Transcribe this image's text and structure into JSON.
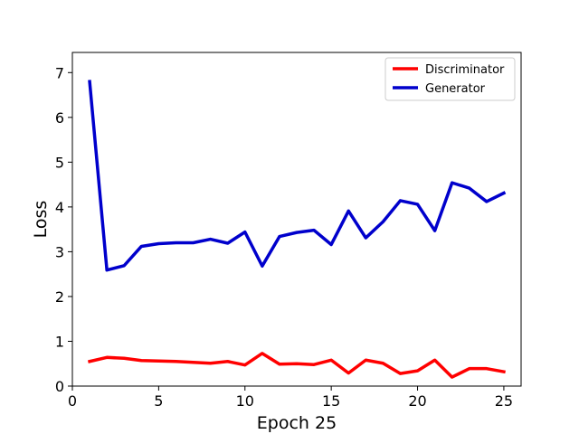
{
  "chart_data": {
    "type": "line",
    "title": "",
    "xlabel": "Epoch 25",
    "ylabel": "Loss",
    "x": [
      1,
      2,
      3,
      4,
      5,
      6,
      7,
      8,
      9,
      10,
      11,
      12,
      13,
      14,
      15,
      16,
      17,
      18,
      19,
      20,
      21,
      22,
      23,
      24,
      25
    ],
    "xlim": [
      0,
      26
    ],
    "ylim": [
      0,
      7.45
    ],
    "xticks": [
      0,
      5,
      10,
      15,
      20,
      25
    ],
    "yticks": [
      0,
      1,
      2,
      3,
      4,
      5,
      6,
      7
    ],
    "grid": false,
    "legend_position": "top-right",
    "series": [
      {
        "name": "Discriminator",
        "color": "#ff0000",
        "values": [
          0.55,
          0.64,
          0.62,
          0.57,
          0.56,
          0.55,
          0.53,
          0.51,
          0.55,
          0.47,
          0.73,
          0.49,
          0.5,
          0.48,
          0.58,
          0.29,
          0.58,
          0.51,
          0.28,
          0.34,
          0.58,
          0.2,
          0.39,
          0.39,
          0.32
        ]
      },
      {
        "name": "Generator",
        "color": "#0000cc",
        "values": [
          6.8,
          2.59,
          2.69,
          3.12,
          3.18,
          3.2,
          3.2,
          3.28,
          3.19,
          3.44,
          2.68,
          3.34,
          3.43,
          3.48,
          3.16,
          3.91,
          3.31,
          3.67,
          4.14,
          4.06,
          3.47,
          4.54,
          4.42,
          4.12,
          4.31
        ]
      }
    ]
  }
}
